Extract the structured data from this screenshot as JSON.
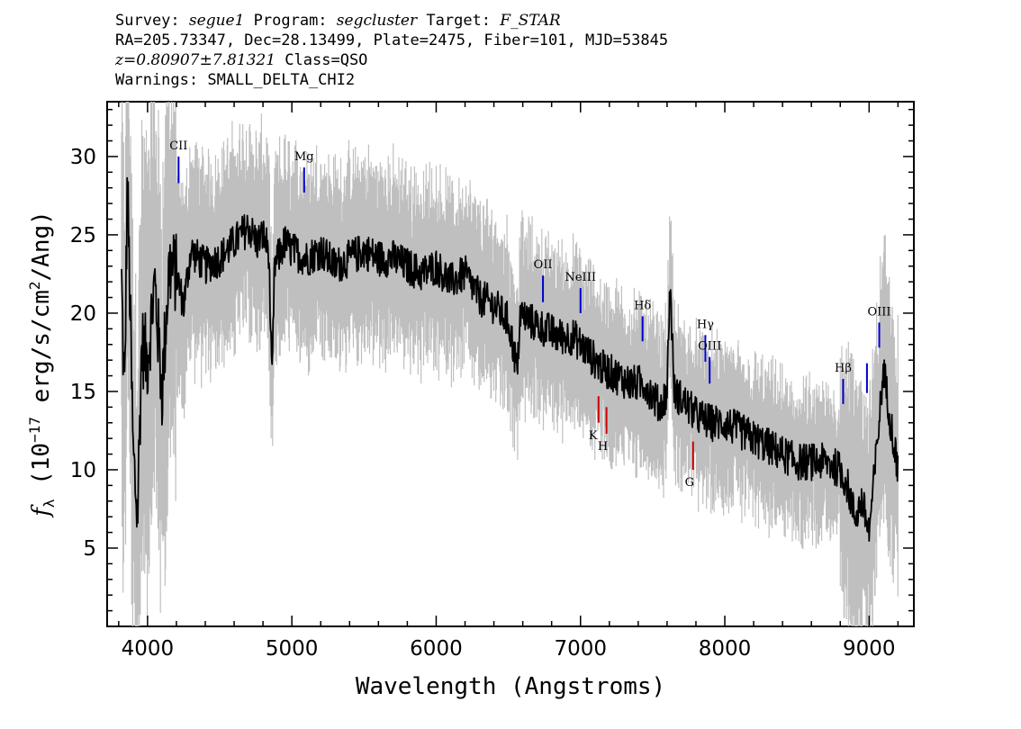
{
  "header": {
    "survey_label": "Survey:",
    "survey": "segue1",
    "program_label": "Program:",
    "program": "segcluster",
    "target_label": "Target:",
    "target": "F_STAR",
    "line2": "RA=205.73347, Dec=28.13499, Plate=2475, Fiber=101, MJD=53845",
    "redshift": "z=0.80907±7.81321",
    "class_text": "Class=QSO",
    "warnings": "Warnings: SMALL_DELTA_CHI2"
  },
  "chart_data": {
    "type": "line",
    "xlabel": "Wavelength (Angstroms)",
    "ylabel_prefix": "f",
    "ylabel_sub": "λ",
    "ylabel_rest": " (10",
    "ylabel_exp": "−17",
    "ylabel_units": " erg/s/cm",
    "ylabel_exp2": "2",
    "ylabel_end": "/Ang)",
    "xlim": [
      3720,
      9310
    ],
    "ylim": [
      0,
      33.5
    ],
    "x_ticks": [
      4000,
      5000,
      6000,
      7000,
      8000,
      9000
    ],
    "y_ticks": [
      5,
      10,
      15,
      20,
      25,
      30
    ],
    "series": [
      {
        "role": "flux",
        "color": "#000000",
        "x": [
          3820,
          3840,
          3860,
          3880,
          3900,
          3930,
          3960,
          4000,
          4050,
          4100,
          4150,
          4200,
          4250,
          4300,
          4400,
          4500,
          4600,
          4700,
          4760,
          4800,
          4840,
          4862,
          4880,
          4950,
          5000,
          5100,
          5200,
          5300,
          5400,
          5500,
          5600,
          5700,
          5800,
          5900,
          6000,
          6100,
          6200,
          6300,
          6400,
          6500,
          6550,
          6563,
          6580,
          6650,
          6750,
          6850,
          6950,
          7050,
          7150,
          7250,
          7350,
          7450,
          7550,
          7600,
          7620,
          7650,
          7700,
          7750,
          7800,
          7900,
          8000,
          8100,
          8200,
          8300,
          8400,
          8500,
          8600,
          8700,
          8800,
          8850,
          8900,
          8950,
          9000,
          9050,
          9100,
          9150,
          9200
        ],
        "y": [
          22.0,
          14.0,
          28.5,
          20.0,
          11.0,
          7.0,
          18.0,
          17.0,
          22.0,
          15.0,
          23.0,
          22.5,
          20.5,
          24.0,
          23.0,
          23.5,
          24.5,
          25.5,
          24.5,
          25.0,
          24.0,
          15.2,
          23.0,
          24.5,
          24.0,
          23.5,
          24.0,
          23.0,
          23.5,
          24.0,
          23.5,
          23.5,
          23.0,
          22.5,
          23.0,
          22.0,
          22.5,
          21.0,
          20.5,
          19.5,
          17.0,
          16.0,
          20.0,
          19.5,
          19.0,
          18.5,
          18.5,
          17.5,
          16.5,
          16.0,
          15.5,
          15.5,
          14.0,
          15.0,
          22.0,
          15.0,
          14.5,
          14.0,
          13.5,
          13.0,
          13.0,
          12.5,
          12.0,
          11.5,
          11.0,
          10.5,
          10.5,
          10.5,
          10.0,
          9.0,
          7.0,
          8.0,
          6.0,
          11.0,
          16.5,
          13.0,
          10.0
        ]
      },
      {
        "role": "noise",
        "color": "#bfbfbf",
        "x": [
          3800,
          9200
        ],
        "y": [
          2.5,
          1.5
        ]
      }
    ],
    "emission_lines": [
      {
        "label": "CII",
        "wavelength": 4215,
        "y_top": 30.0,
        "y_bottom": 28.3,
        "color": "#0000cc"
      },
      {
        "label": "Mg",
        "wavelength": 5085,
        "y_top": 29.3,
        "y_bottom": 27.7,
        "color": "#0000cc"
      },
      {
        "label": "OII",
        "wavelength": 6740,
        "y_top": 22.4,
        "y_bottom": 20.7,
        "color": "#0000cc"
      },
      {
        "label": "NeIII",
        "wavelength": 7000,
        "y_top": 21.6,
        "y_bottom": 20.0,
        "color": "#0000cc"
      },
      {
        "label": "Hδ",
        "wavelength": 7430,
        "y_top": 19.8,
        "y_bottom": 18.2,
        "color": "#0000cc"
      },
      {
        "label": "Hγ",
        "wavelength": 7865,
        "y_top": 18.6,
        "y_bottom": 16.9,
        "color": "#0000cc"
      },
      {
        "label": "OIII",
        "wavelength": 7895,
        "y_top": 17.2,
        "y_bottom": 15.5,
        "color": "#0000cc"
      },
      {
        "label": "Hβ",
        "wavelength": 8820,
        "y_top": 15.8,
        "y_bottom": 14.2,
        "color": "#0000cc"
      },
      {
        "label": "",
        "wavelength": 8985,
        "y_top": 16.8,
        "y_bottom": 14.9,
        "color": "#0000cc"
      },
      {
        "label": "OIII",
        "wavelength": 9070,
        "y_top": 19.4,
        "y_bottom": 17.8,
        "color": "#0000cc"
      }
    ],
    "absorption_lines": [
      {
        "label": "K",
        "wavelength": 7125,
        "y_top": 14.7,
        "y_bottom": 13.0,
        "color": "#cc0000"
      },
      {
        "label": "H",
        "wavelength": 7180,
        "y_top": 14.0,
        "y_bottom": 12.3,
        "color": "#cc0000"
      },
      {
        "label": "G",
        "wavelength": 7780,
        "y_top": 11.8,
        "y_bottom": 10.0,
        "color": "#cc0000"
      }
    ]
  }
}
